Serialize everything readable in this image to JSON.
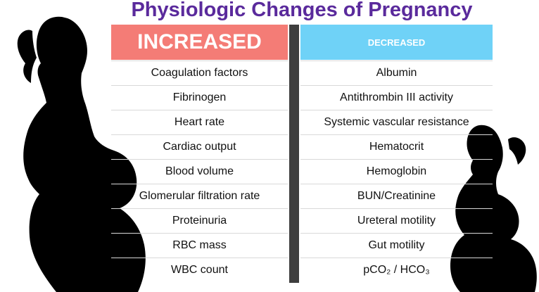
{
  "title": "Physiologic Changes of Pregnancy",
  "headers": {
    "increased": "INCREASED",
    "decreased": "DECREASED"
  },
  "increased": [
    "Coagulation factors",
    "Fibrinogen",
    "Heart rate",
    "Cardiac output",
    "Blood volume",
    "Glomerular filtration rate",
    "Proteinuria",
    "RBC mass",
    "WBC count"
  ],
  "decreased": [
    "Albumin",
    "Antithrombin III activity",
    "Systemic vascular resistance",
    "Hematocrit",
    "Hemoglobin",
    "BUN/Creatinine",
    "Ureteral motility",
    "Gut motility",
    "pCO₂ / HCO₃"
  ],
  "colors": {
    "title": "#5a2a9c",
    "increased_header": "#f47c76",
    "decreased_header": "#6fd2f7",
    "divider": "#3e3e3e",
    "silhouette": "#000000"
  },
  "icons": [
    "pregnant-woman-silhouette-large",
    "pregnant-woman-silhouette-small"
  ]
}
